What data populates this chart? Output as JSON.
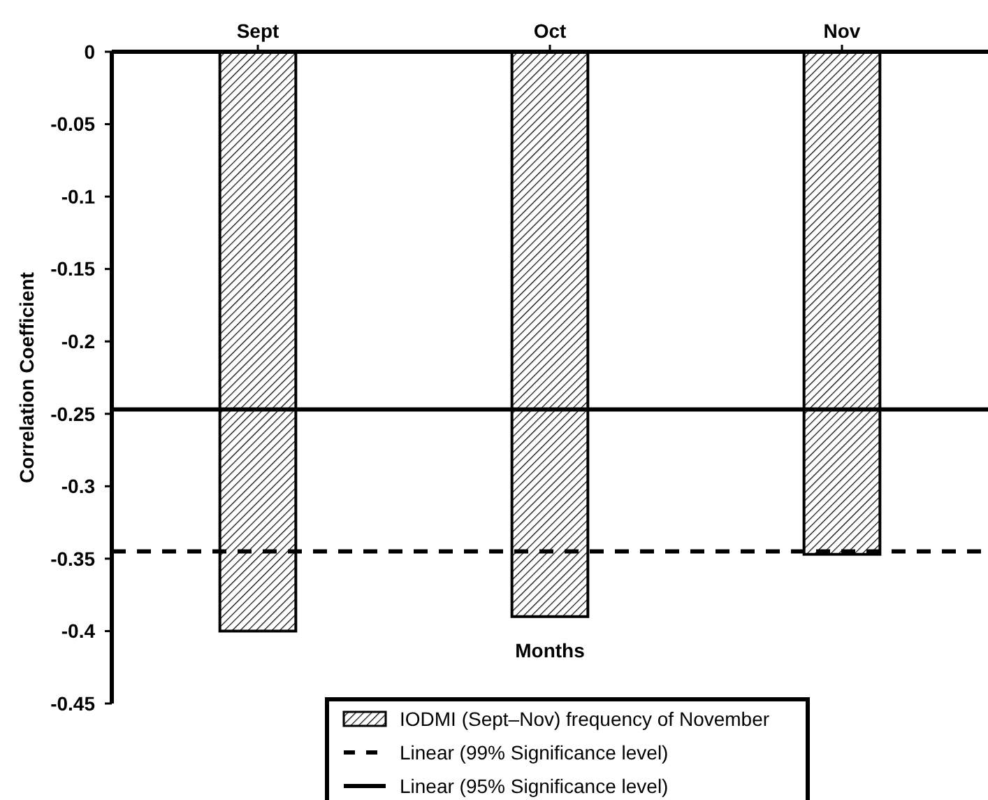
{
  "chart_data": {
    "type": "bar",
    "ylabel": "Correlation Coefficient",
    "xlabel": "Months",
    "categories": [
      "Sept",
      "Oct",
      "Nov"
    ],
    "series": [
      {
        "name": "IODMI (Sept–Nov) frequency of November",
        "color": "#000000",
        "values": [
          -0.4,
          -0.39,
          -0.347
        ]
      }
    ],
    "ylim": [
      -0.45,
      0
    ],
    "yticks": [
      0,
      -0.05,
      -0.1,
      -0.15,
      -0.2,
      -0.25,
      -0.3,
      -0.35,
      -0.4,
      -0.45
    ],
    "ref_lines": [
      {
        "axis": "y",
        "value": -0.345,
        "label": "Linear (99% Significance level)",
        "color": "#000000",
        "line_style": "dashed"
      },
      {
        "axis": "y",
        "value": -0.247,
        "label": "Linear (95% Significance level)",
        "color": "#000000",
        "line_style": "solid"
      }
    ],
    "grid": false,
    "legend": "bottom"
  }
}
